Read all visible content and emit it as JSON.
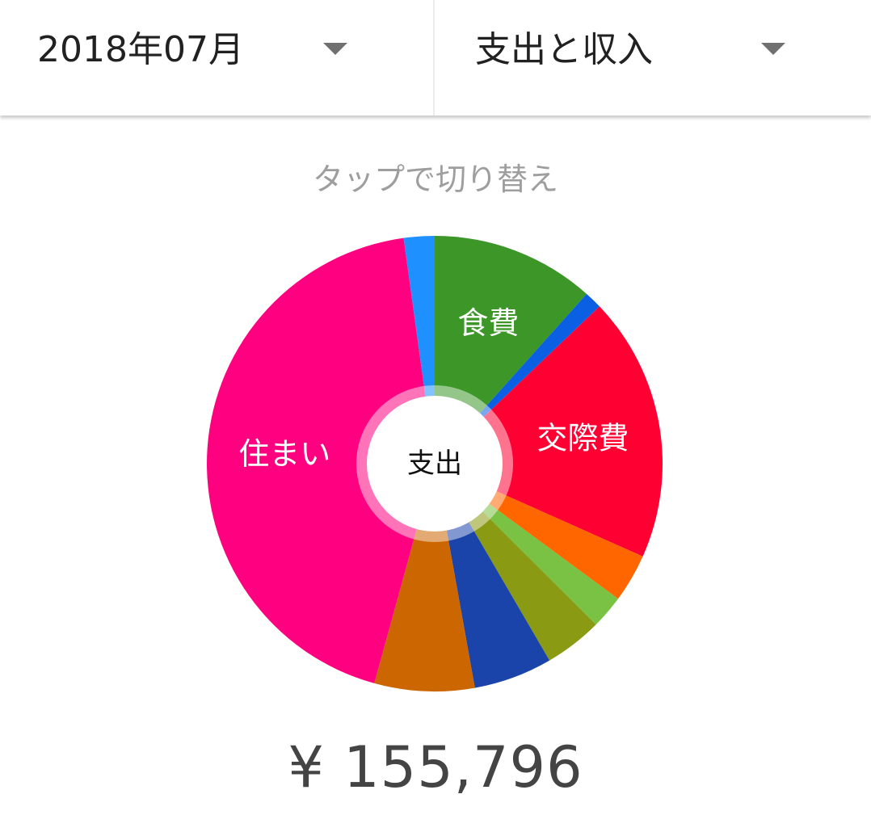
{
  "header": {
    "month_selector": "2018年07月",
    "type_selector": "支出と収入"
  },
  "hint": "タップで切り替え",
  "center_label": "支出",
  "total": "¥ 155,796",
  "chart_data": {
    "type": "pie",
    "variant": "donut",
    "start_angle": "top, clockwise",
    "slices": [
      {
        "label": "食費",
        "value": 18100,
        "color": "#3c9628"
      },
      {
        "label": "",
        "value": 1950,
        "color": "#0b5fe3"
      },
      {
        "label": "交際費",
        "value": 29300,
        "color": "#ff0033"
      },
      {
        "label": "",
        "value": 5350,
        "color": "#ff6600"
      },
      {
        "label": "",
        "value": 3700,
        "color": "#79c243"
      },
      {
        "label": "",
        "value": 6400,
        "color": "#8a9a12"
      },
      {
        "label": "",
        "value": 8700,
        "color": "#1a44aa"
      },
      {
        "label": "",
        "value": 11050,
        "color": "#cc6600"
      },
      {
        "label": "住まい",
        "value": 67850,
        "color": "#ff0080"
      },
      {
        "label": "",
        "value": 3396,
        "color": "#1e90ff"
      }
    ]
  }
}
